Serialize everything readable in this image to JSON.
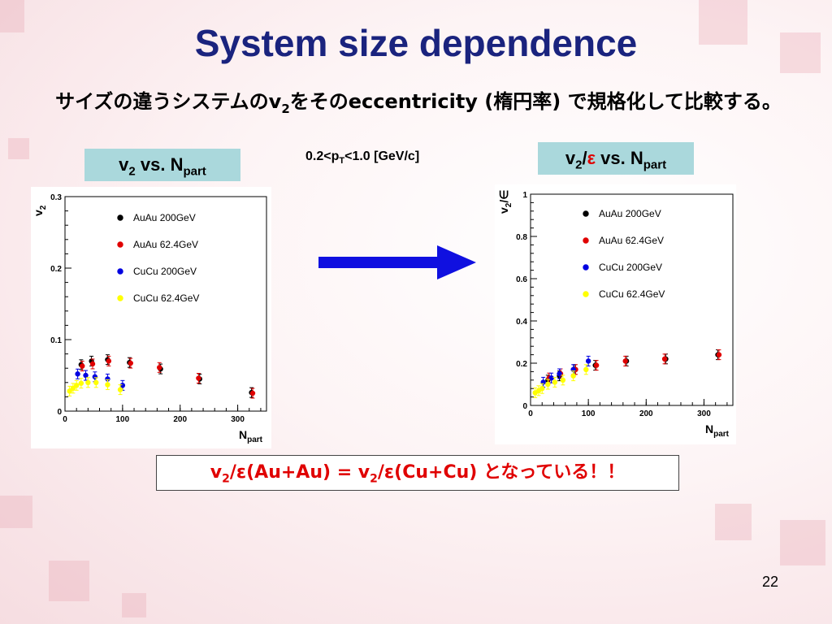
{
  "slide": {
    "title": "System size dependence",
    "subtitle_prefix": "サイズの違うシステムのv",
    "subtitle_sub": "2",
    "subtitle_suffix": "をそのeccentricity (楕円率) で規格化して比較する。",
    "condition_prefix": "0.2<p",
    "condition_sub": "T",
    "condition_suffix": "<1.0 [GeV/c]",
    "left_label": {
      "a": "v",
      "a_sub": "2",
      "b": " vs. N",
      "b_sub": "part"
    },
    "right_label": {
      "a": "v",
      "a_sub": "2",
      "slash": "/",
      "eps": "ε",
      "b": " vs. N",
      "b_sub": "part"
    },
    "result": {
      "p1": "v",
      "s1": "2",
      "p2": "/ε(Au+Au) = v",
      "s2": "2",
      "p3": "/ε(Cu+Cu) となっている！！"
    },
    "page_number": "22"
  },
  "colors": {
    "title": "#1a237e",
    "label_bg": "#aad8dc",
    "arrow": "#1010e0",
    "result_text": "#e00000"
  },
  "chart_data": [
    {
      "type": "scatter",
      "ylabel_main": "v",
      "ylabel_sub": "2",
      "xlabel_main": "N",
      "xlabel_sub": "part",
      "xlim": [
        0,
        350
      ],
      "ylim": [
        0,
        0.3
      ],
      "xticks": [
        "0",
        "100",
        "200",
        "300"
      ],
      "yticks": [
        "0",
        "0.1",
        "0.2",
        "0.3"
      ],
      "series": [
        {
          "name": "AuAu 200GeV",
          "color": "#000000",
          "points": [
            [
              28,
              0.065
            ],
            [
              46,
              0.07
            ],
            [
              74,
              0.072
            ],
            [
              112,
              0.068
            ],
            [
              166,
              0.059
            ],
            [
              234,
              0.045
            ],
            [
              324,
              0.026
            ]
          ]
        },
        {
          "name": "AuAu 62.4GeV",
          "color": "#e00000",
          "points": [
            [
              30,
              0.063
            ],
            [
              48,
              0.066
            ],
            [
              76,
              0.07
            ],
            [
              114,
              0.067
            ],
            [
              164,
              0.061
            ],
            [
              232,
              0.046
            ],
            [
              326,
              0.025
            ]
          ]
        },
        {
          "name": "CuCu 200GeV",
          "color": "#0000e0",
          "points": [
            [
              22,
              0.052
            ],
            [
              36,
              0.05
            ],
            [
              52,
              0.048
            ],
            [
              74,
              0.045
            ],
            [
              100,
              0.036
            ]
          ]
        },
        {
          "name": "CuCu 62.4GeV",
          "color": "#ffff00",
          "points": [
            [
              8,
              0.028
            ],
            [
              14,
              0.032
            ],
            [
              20,
              0.036
            ],
            [
              28,
              0.039
            ],
            [
              40,
              0.04
            ],
            [
              54,
              0.04
            ],
            [
              74,
              0.037
            ],
            [
              96,
              0.03
            ]
          ]
        }
      ]
    },
    {
      "type": "scatter",
      "ylabel_main": "v",
      "ylabel_sub": "2",
      "ylabel_tail": "/∈",
      "xlabel_main": "N",
      "xlabel_sub": "part",
      "xlim": [
        0,
        350
      ],
      "ylim": [
        0,
        1
      ],
      "xticks": [
        "0",
        "100",
        "200",
        "300"
      ],
      "yticks": [
        "0",
        "0.2",
        "0.4",
        "0.6",
        "0.8",
        "1"
      ],
      "series": [
        {
          "name": "AuAu 200GeV",
          "color": "#000000",
          "points": [
            [
              30,
              0.12
            ],
            [
              50,
              0.14
            ],
            [
              76,
              0.17
            ],
            [
              112,
              0.19
            ],
            [
              166,
              0.21
            ],
            [
              234,
              0.22
            ],
            [
              324,
              0.24
            ]
          ]
        },
        {
          "name": "AuAu 62.4GeV",
          "color": "#e00000",
          "points": [
            [
              32,
              0.13
            ],
            [
              52,
              0.15
            ],
            [
              78,
              0.17
            ],
            [
              114,
              0.19
            ],
            [
              164,
              0.21
            ],
            [
              232,
              0.22
            ],
            [
              326,
              0.24
            ]
          ]
        },
        {
          "name": "CuCu 200GeV",
          "color": "#0000e0",
          "points": [
            [
              22,
              0.11
            ],
            [
              36,
              0.13
            ],
            [
              50,
              0.15
            ],
            [
              74,
              0.17
            ],
            [
              100,
              0.21
            ]
          ]
        },
        {
          "name": "CuCu 62.4GeV",
          "color": "#ffff00",
          "points": [
            [
              8,
              0.06
            ],
            [
              14,
              0.07
            ],
            [
              20,
              0.08
            ],
            [
              30,
              0.1
            ],
            [
              42,
              0.11
            ],
            [
              56,
              0.12
            ],
            [
              74,
              0.14
            ],
            [
              96,
              0.17
            ]
          ]
        }
      ]
    }
  ]
}
